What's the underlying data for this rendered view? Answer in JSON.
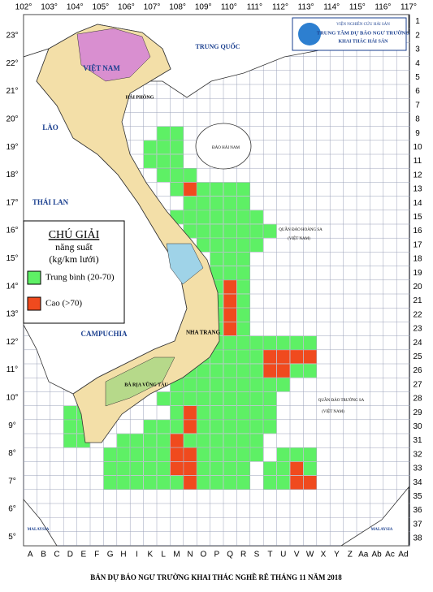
{
  "header": {
    "institute": "VIỆN NGHIÊN CỨU HẢI SẢN",
    "center_line1": "TRUNG TÂM DỰ BÁO NGƯ TRƯỜNG",
    "center_line2": "KHAI THÁC HẢI SẢN"
  },
  "longitude_labels": [
    "102°",
    "103°",
    "104°",
    "105°",
    "106°",
    "107°",
    "108°",
    "109°",
    "110°",
    "111°",
    "112°",
    "113°",
    "114°",
    "115°",
    "116°",
    "117°"
  ],
  "latitude_labels": [
    "23°",
    "22°",
    "21°",
    "20°",
    "19°",
    "18°",
    "17°",
    "16°",
    "15°",
    "14°",
    "13°",
    "12°",
    "11°",
    "10°",
    "9°",
    "8°",
    "7°",
    "6°",
    "5°"
  ],
  "row_labels": [
    "1",
    "2",
    "3",
    "4",
    "5",
    "6",
    "7",
    "8",
    "9",
    "10",
    "11",
    "12",
    "13",
    "14",
    "15",
    "16",
    "17",
    "18",
    "19",
    "20",
    "21",
    "22",
    "23",
    "24",
    "25",
    "26",
    "27",
    "28",
    "29",
    "30",
    "31",
    "32",
    "33",
    "34",
    "35",
    "36",
    "37",
    "38"
  ],
  "column_labels": [
    "A",
    "B",
    "C",
    "D",
    "E",
    "F",
    "G",
    "H",
    "I",
    "K",
    "L",
    "M",
    "N",
    "O",
    "P",
    "Q",
    "R",
    "S",
    "T",
    "U",
    "V",
    "W",
    "X",
    "Y",
    "Z",
    "Aa",
    "Ab",
    "Ac",
    "Ad"
  ],
  "place_labels": [
    "TRUNG QUỐC",
    "VIỆT NAM",
    "LÀO",
    "THÁI LAN",
    "CAMPUCHIA",
    "HẢI PHÒNG",
    "ĐẢO HẢI NAM",
    "NHA TRANG",
    "BÀ RỊA VŨNG TÀU",
    "QUẦN ĐẢO HOÀNG SA",
    "(VIỆT NAM)",
    "QUẦN ĐẢO TRƯỜNG SA",
    "(VIỆT NAM)",
    "MALAYSIA",
    "MALAYSIA"
  ],
  "legend": {
    "title": "CHÚ GIẢI",
    "subtitle1": "năng suất",
    "subtitle2": "(kg/km lưới)",
    "items": [
      "Trung bình (20-70)",
      "Cao (>70)"
    ]
  },
  "footer": {
    "title": "BẢN DỰ BÁO NGƯ TRƯỜNG KHAI THÁC NGHỀ RÊ THÁNG 11 NĂM 2018"
  }
}
